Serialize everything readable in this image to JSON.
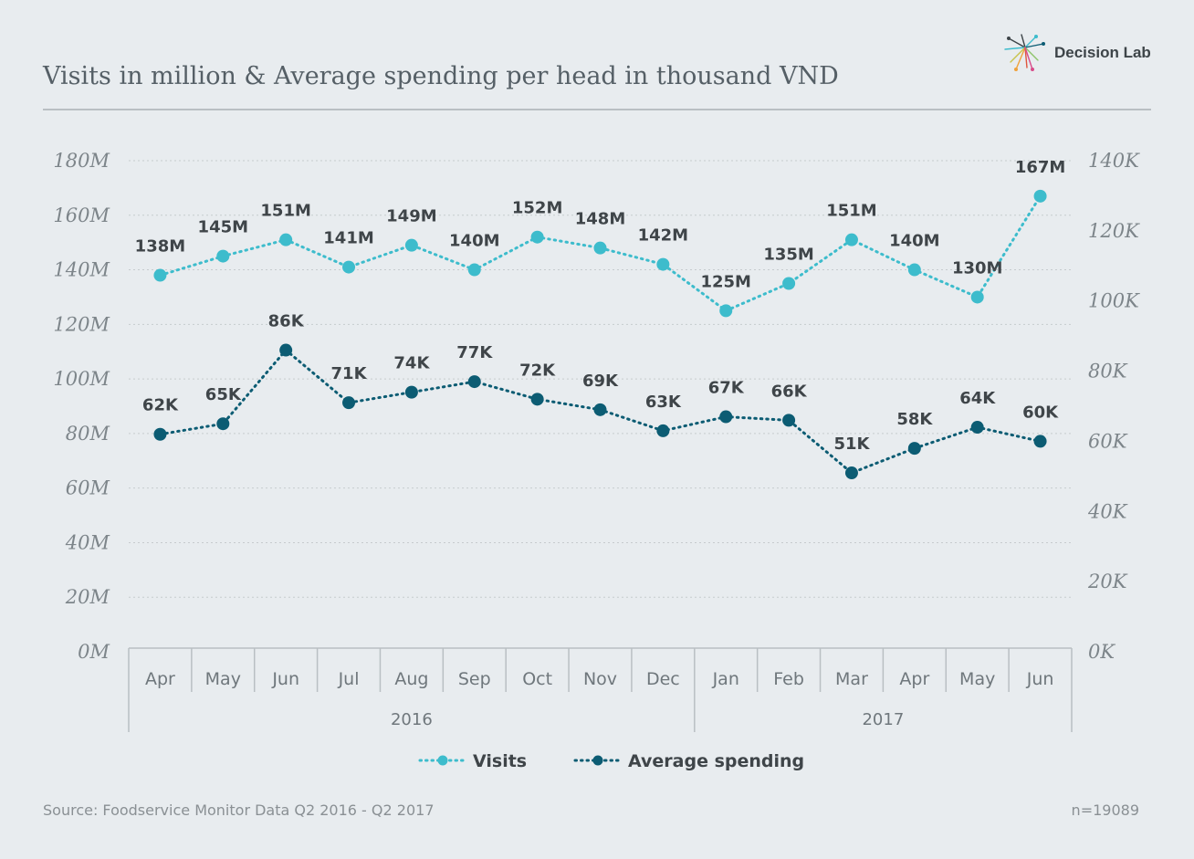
{
  "title": "Visits in million & Average spending per head in thousand VND",
  "brand": {
    "name": "Decision Lab"
  },
  "footer": {
    "source": "Source: Foodservice Monitor Data Q2 2016 - Q2 2017",
    "sample": "n=19089"
  },
  "chart_data": {
    "type": "line",
    "categories": [
      "Apr",
      "May",
      "Jun",
      "Jul",
      "Aug",
      "Sep",
      "Oct",
      "Nov",
      "Dec",
      "Jan",
      "Feb",
      "Mar",
      "Apr",
      "May",
      "Jun"
    ],
    "groups": [
      {
        "label": "2016",
        "span": [
          0,
          8
        ]
      },
      {
        "label": "2017",
        "span": [
          9,
          14
        ]
      }
    ],
    "series": [
      {
        "name": "Visits",
        "axis": "left",
        "color": "#3dbccc",
        "values": [
          138,
          145,
          151,
          141,
          149,
          140,
          152,
          148,
          142,
          125,
          135,
          151,
          140,
          130,
          167
        ],
        "labels": [
          "138M",
          "145M",
          "151M",
          "141M",
          "149M",
          "140M",
          "152M",
          "148M",
          "142M",
          "125M",
          "135M",
          "151M",
          "140M",
          "130M",
          "167M"
        ]
      },
      {
        "name": "Average spending",
        "axis": "right",
        "color": "#0c5c73",
        "values": [
          62,
          65,
          86,
          71,
          74,
          77,
          72,
          69,
          63,
          67,
          66,
          51,
          58,
          64,
          60
        ],
        "labels": [
          "62K",
          "65K",
          "86K",
          "71K",
          "74K",
          "77K",
          "72K",
          "69K",
          "63K",
          "67K",
          "66K",
          "51K",
          "58K",
          "64K",
          "60K"
        ]
      }
    ],
    "y_left": {
      "min": 0,
      "max": 180,
      "ticks": [
        0,
        20,
        40,
        60,
        80,
        100,
        120,
        140,
        160,
        180
      ],
      "tick_labels": [
        "0M",
        "20M",
        "40M",
        "60M",
        "80M",
        "100M",
        "120M",
        "140M",
        "160M",
        "180M"
      ]
    },
    "y_right": {
      "min": 0,
      "max": 140,
      "ticks": [
        0,
        20,
        40,
        60,
        80,
        100,
        120,
        140
      ],
      "tick_labels": [
        "0K",
        "20K",
        "40K",
        "60K",
        "80K",
        "100K",
        "120K",
        "140K"
      ]
    },
    "grid": true,
    "legend": "bottom"
  }
}
